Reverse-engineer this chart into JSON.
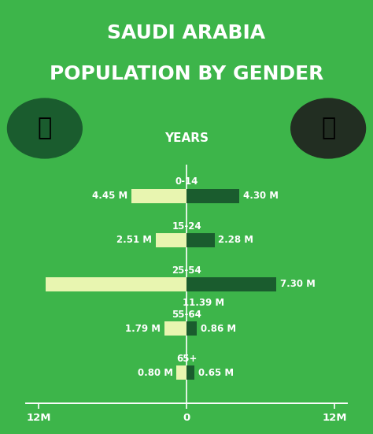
{
  "title_line1": "SAUDI ARABIA",
  "title_line2": "POPULATION BY GENDER",
  "title_bg": "#1a5c2e",
  "chart_bg": "#3db54a",
  "male_color": "#e8f5b0",
  "female_color": "#1a5c2e",
  "text_color": "#ffffff",
  "years_label": "YEARS",
  "categories": [
    "0-14",
    "15-24",
    "25-54",
    "55-64",
    "65+"
  ],
  "male_values": [
    4.45,
    2.51,
    11.39,
    1.79,
    0.8
  ],
  "female_values": [
    4.3,
    2.28,
    7.3,
    0.86,
    0.65
  ],
  "male_label_format": [
    "4.45 M",
    "2.51 M",
    "11.39 M",
    "1.79 M",
    "0.80 M"
  ],
  "female_label_format": [
    "4.30 M",
    "2.28 M",
    "7.30 M",
    "0.86 M",
    "0.65 M"
  ],
  "xlim": 12,
  "title_fontsize": 18,
  "label_fontsize": 8.5,
  "cat_fontsize": 8.5
}
